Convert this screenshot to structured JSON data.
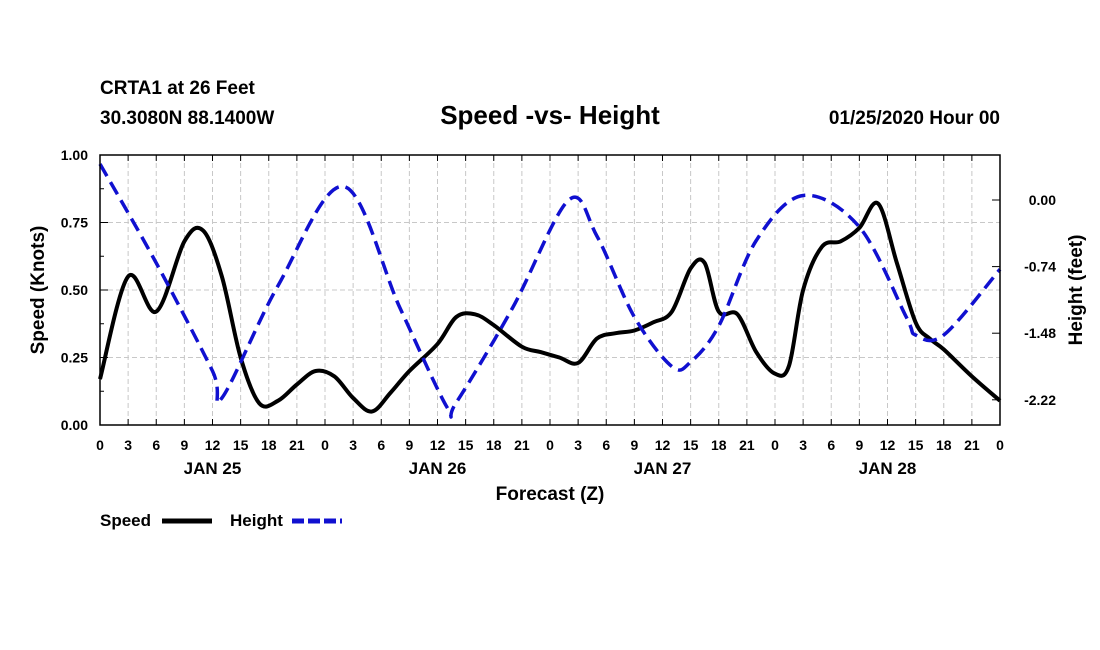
{
  "chart_data": {
    "type": "line",
    "station": "CRTA1 at 26 Feet",
    "location": "30.3080N 88.1400W",
    "title": "Speed -vs- Height",
    "timestamp": "01/25/2020 Hour 00",
    "xlabel": "Forecast (Z)",
    "ylabel_left": "Speed (Knots)",
    "ylabel_right": "Height (feet)",
    "xlim": [
      0,
      96
    ],
    "ylim_left": [
      0,
      1
    ],
    "ylim_right": [
      -2.5,
      0.5
    ],
    "left_ticks": [
      "0.00",
      "0.25",
      "0.50",
      "0.75",
      "1.00"
    ],
    "right_ticks": [
      {
        "value": 0.0,
        "label": "0.00"
      },
      {
        "value": -0.74,
        "label": "-0.74"
      },
      {
        "value": -1.48,
        "label": "-1.48"
      },
      {
        "value": -2.22,
        "label": "-2.22"
      }
    ],
    "x_tick_labels": [
      "0",
      "3",
      "6",
      "9",
      "12",
      "15",
      "18",
      "21",
      "0",
      "3",
      "6",
      "9",
      "12",
      "15",
      "18",
      "21",
      "0",
      "3",
      "6",
      "9",
      "12",
      "15",
      "18",
      "21",
      "0",
      "3",
      "6",
      "9",
      "12",
      "15",
      "18",
      "21",
      "0"
    ],
    "day_labels": [
      {
        "hour": 12,
        "label": "JAN 25"
      },
      {
        "hour": 36,
        "label": "JAN 26"
      },
      {
        "hour": 60,
        "label": "JAN 27"
      },
      {
        "hour": 84,
        "label": "JAN 28"
      }
    ],
    "grid": true,
    "legend_position": "bottom-left",
    "series": [
      {
        "name": "Speed",
        "axis": "left",
        "color": "#000000",
        "style": "solid",
        "x": [
          0,
          3,
          6,
          9,
          11,
          13,
          15,
          17,
          19,
          21,
          23,
          25,
          27,
          29,
          31,
          33,
          36,
          38,
          40,
          42,
          45,
          47,
          49,
          51,
          53,
          55,
          57,
          59,
          61,
          63,
          64.5,
          66,
          68,
          70,
          72,
          73.5,
          75,
          77,
          79,
          81,
          83,
          85,
          87,
          88.5,
          90,
          93,
          96
        ],
        "y": [
          0.17,
          0.55,
          0.42,
          0.68,
          0.72,
          0.55,
          0.25,
          0.08,
          0.09,
          0.15,
          0.2,
          0.18,
          0.1,
          0.05,
          0.12,
          0.2,
          0.3,
          0.4,
          0.41,
          0.37,
          0.29,
          0.27,
          0.25,
          0.23,
          0.32,
          0.34,
          0.35,
          0.38,
          0.42,
          0.58,
          0.6,
          0.42,
          0.41,
          0.27,
          0.19,
          0.22,
          0.5,
          0.66,
          0.68,
          0.73,
          0.82,
          0.6,
          0.38,
          0.32,
          0.28,
          0.18,
          0.09
        ]
      },
      {
        "name": "Height",
        "axis": "right",
        "color": "#1010d0",
        "style": "dashed",
        "x": [
          0,
          6,
          12,
          13,
          19,
          26,
          32,
          37,
          38,
          44,
          50,
          53,
          57,
          61,
          63,
          66,
          70,
          75,
          81,
          86,
          87,
          90,
          96
        ],
        "y": [
          0.4,
          -0.7,
          -1.9,
          -2.2,
          -0.95,
          0.15,
          -1.2,
          -2.3,
          -2.25,
          -1.2,
          0.0,
          -0.4,
          -1.3,
          -1.85,
          -1.8,
          -1.4,
          -0.45,
          0.05,
          -0.3,
          -1.3,
          -1.5,
          -1.5,
          -0.77
        ]
      }
    ]
  },
  "legend": {
    "speed_label": "Speed",
    "height_label": "Height",
    "speed_color": "#000000",
    "height_color": "#1010d0"
  }
}
